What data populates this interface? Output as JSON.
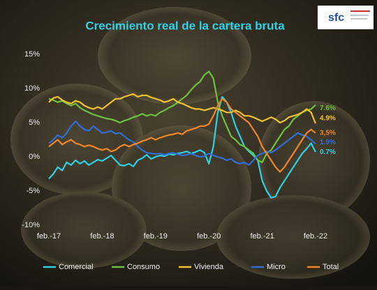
{
  "logo": "sfc",
  "chart_data": {
    "type": "line",
    "title": "Crecimiento real de la cartera bruta",
    "categories": [
      "feb.-17",
      null,
      null,
      null,
      null,
      null,
      null,
      null,
      null,
      null,
      null,
      null,
      "feb.-18",
      null,
      null,
      null,
      null,
      null,
      null,
      null,
      null,
      null,
      null,
      null,
      "feb.-19",
      null,
      null,
      null,
      null,
      null,
      null,
      null,
      null,
      null,
      null,
      null,
      "feb.-20",
      null,
      null,
      null,
      null,
      null,
      null,
      null,
      null,
      null,
      null,
      null,
      "feb.-21",
      null,
      null,
      null,
      null,
      null,
      null,
      null,
      null,
      null,
      null,
      null,
      "feb.-22"
    ],
    "ylim": [
      -10,
      15
    ],
    "yticks": [
      {
        "value": -10,
        "label": "-10%"
      },
      {
        "value": -5,
        "label": "-5%"
      },
      {
        "value": 0,
        "label": "0%"
      },
      {
        "value": 5,
        "label": "5%"
      },
      {
        "value": 10,
        "label": "10%"
      },
      {
        "value": 15,
        "label": "15%"
      }
    ],
    "grid": false,
    "legend": "bottom",
    "series": [
      {
        "name": "Comercial",
        "color": "#2fd0e2",
        "values": [
          -3.2,
          -2.5,
          -1.5,
          -2,
          -0.8,
          -1.2,
          -0.5,
          -1,
          -0.6,
          -1.2,
          -0.8,
          -0.4,
          -0.6,
          -0.2,
          0.2,
          -0.5,
          -1.2,
          -1.3,
          -1.0,
          -1.4,
          -0.5,
          -0.2,
          0.3,
          -0.3,
          0.0,
          0.2,
          0.1,
          0.4,
          0.3,
          0.5,
          0.6,
          0.8,
          0.5,
          0.7,
          1.0,
          0.6,
          -1.0,
          1.5,
          6.5,
          8.8,
          8.0,
          6.5,
          4.5,
          3.0,
          1.5,
          0.8,
          0.2,
          -0.5,
          -3.5,
          -5.0,
          -6.0,
          -5.8,
          -4.5,
          -3.5,
          -2.5,
          -1.5,
          -0.5,
          0.5,
          1.2,
          2.0,
          0.7
        ],
        "value_labels": [
          null,
          null,
          null,
          null,
          null,
          null,
          null,
          null,
          null,
          null,
          null,
          null,
          null,
          null,
          null,
          null,
          null,
          null,
          null,
          null,
          null,
          null,
          null,
          null,
          null,
          null,
          null,
          null,
          null,
          null,
          null,
          null,
          null,
          null,
          null,
          null,
          null,
          null,
          null,
          null,
          null,
          null,
          null,
          null,
          null,
          null,
          null,
          null,
          null,
          null,
          null,
          null,
          null,
          null,
          null,
          null,
          null,
          null,
          null,
          null,
          "0.7%"
        ]
      },
      {
        "name": "Consumo",
        "color": "#6cc23e",
        "values": [
          8.5,
          8.3,
          8.0,
          8.2,
          7.8,
          7.5,
          7.8,
          7.2,
          6.8,
          6.5,
          6.2,
          6.0,
          5.8,
          5.6,
          5.5,
          5.3,
          5.0,
          5.3,
          5.5,
          5.8,
          6.0,
          6.3,
          6.0,
          6.2,
          6.0,
          6.5,
          6.8,
          7.2,
          7.5,
          8.0,
          8.5,
          9.0,
          9.8,
          10.5,
          11.0,
          12.0,
          12.5,
          11.5,
          8.0,
          6.0,
          4.5,
          3.0,
          2.5,
          1.8,
          1.5,
          1.0,
          0.5,
          -0.5,
          -0.8,
          0.5,
          1.0,
          2.0,
          3.0,
          4.0,
          4.5,
          5.5,
          6.0,
          6.5,
          6.8,
          7.0,
          7.6
        ],
        "value_labels": [
          null,
          null,
          null,
          null,
          null,
          null,
          null,
          null,
          null,
          null,
          null,
          null,
          null,
          null,
          null,
          null,
          null,
          null,
          null,
          null,
          null,
          null,
          null,
          null,
          null,
          null,
          null,
          null,
          null,
          null,
          null,
          null,
          null,
          null,
          null,
          null,
          null,
          null,
          null,
          null,
          null,
          null,
          null,
          null,
          null,
          null,
          null,
          null,
          null,
          null,
          null,
          null,
          null,
          null,
          null,
          null,
          null,
          null,
          null,
          null,
          "7.6%"
        ]
      },
      {
        "name": "Vivienda",
        "color": "#f2c12e",
        "values": [
          8.0,
          8.6,
          8.8,
          8.3,
          8.0,
          7.8,
          8.2,
          8.0,
          7.5,
          7.2,
          7.0,
          7.3,
          7.0,
          7.5,
          8.0,
          8.5,
          8.5,
          8.8,
          9.0,
          9.2,
          8.8,
          9.0,
          9.0,
          8.7,
          8.5,
          8.3,
          8.0,
          8.2,
          8.5,
          8.0,
          7.8,
          7.5,
          7.2,
          7.0,
          7.0,
          6.8,
          7.0,
          7.2,
          7.0,
          6.8,
          6.5,
          6.5,
          6.8,
          6.5,
          6.0,
          6.0,
          5.8,
          5.5,
          5.2,
          5.5,
          5.8,
          5.5,
          5.0,
          5.3,
          5.8,
          6.0,
          6.2,
          6.5,
          7.0,
          6.5,
          4.9
        ],
        "value_labels": [
          null,
          null,
          null,
          null,
          null,
          null,
          null,
          null,
          null,
          null,
          null,
          null,
          null,
          null,
          null,
          null,
          null,
          null,
          null,
          null,
          null,
          null,
          null,
          null,
          null,
          null,
          null,
          null,
          null,
          null,
          null,
          null,
          null,
          null,
          null,
          null,
          null,
          null,
          null,
          null,
          null,
          null,
          null,
          null,
          null,
          null,
          null,
          null,
          null,
          null,
          null,
          null,
          null,
          null,
          null,
          null,
          null,
          null,
          null,
          null,
          "4.9%"
        ]
      },
      {
        "name": "Micro",
        "color": "#2f6fd6",
        "values": [
          2.0,
          2.5,
          3.2,
          2.8,
          3.5,
          4.5,
          5.2,
          4.5,
          4.0,
          3.8,
          4.5,
          4.0,
          3.5,
          3.6,
          3.8,
          3.4,
          3.5,
          3.0,
          2.5,
          2.2,
          1.5,
          1.0,
          0.6,
          0.5,
          0.4,
          0.5,
          0.3,
          0.5,
          0.6,
          0.4,
          0.2,
          0.3,
          0.5,
          0.2,
          0.0,
          0.1,
          0.5,
          0.2,
          0.0,
          -0.2,
          -0.5,
          -0.3,
          -0.8,
          -1.0,
          -0.8,
          -1.2,
          -0.5,
          0.2,
          0.5,
          0.8,
          0.6,
          1.0,
          1.5,
          2.0,
          2.5,
          3.0,
          3.5,
          3.2,
          3.0,
          2.5,
          1.9
        ],
        "value_labels": [
          null,
          null,
          null,
          null,
          null,
          null,
          null,
          null,
          null,
          null,
          null,
          null,
          null,
          null,
          null,
          null,
          null,
          null,
          null,
          null,
          null,
          null,
          null,
          null,
          null,
          null,
          null,
          null,
          null,
          null,
          null,
          null,
          null,
          null,
          null,
          null,
          null,
          null,
          null,
          null,
          null,
          null,
          null,
          null,
          null,
          null,
          null,
          null,
          null,
          null,
          null,
          null,
          null,
          null,
          null,
          null,
          null,
          null,
          null,
          null,
          "1.9%"
        ]
      },
      {
        "name": "Total",
        "color": "#f0862a",
        "values": [
          1.5,
          2.0,
          2.5,
          1.8,
          2.2,
          2.5,
          2.0,
          1.8,
          1.5,
          1.7,
          1.5,
          1.2,
          1.0,
          1.2,
          0.8,
          1.0,
          1.5,
          1.8,
          1.5,
          1.8,
          2.0,
          2.3,
          2.5,
          2.8,
          2.5,
          2.8,
          3.0,
          3.2,
          3.3,
          3.5,
          3.3,
          3.8,
          4.0,
          4.2,
          4.5,
          4.5,
          4.8,
          6.0,
          7.5,
          8.5,
          8.0,
          7.0,
          6.5,
          6.0,
          5.5,
          5.0,
          4.0,
          3.0,
          1.5,
          0.5,
          -0.5,
          -1.5,
          -2.2,
          -1.5,
          -0.5,
          0.5,
          1.5,
          2.5,
          3.5,
          4.0,
          3.5
        ],
        "value_labels": [
          null,
          null,
          null,
          null,
          null,
          null,
          null,
          null,
          null,
          null,
          null,
          null,
          null,
          null,
          null,
          null,
          null,
          null,
          null,
          null,
          null,
          null,
          null,
          null,
          null,
          null,
          null,
          null,
          null,
          null,
          null,
          null,
          null,
          null,
          null,
          null,
          null,
          null,
          null,
          null,
          null,
          null,
          null,
          null,
          null,
          null,
          null,
          null,
          null,
          null,
          null,
          null,
          null,
          null,
          null,
          null,
          null,
          null,
          null,
          null,
          "3,5%"
        ]
      }
    ]
  }
}
